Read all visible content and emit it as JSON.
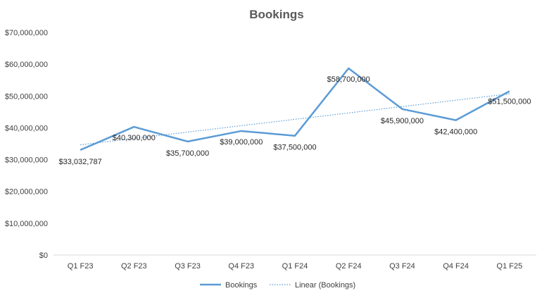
{
  "chart_data": {
    "type": "line",
    "title": "Bookings",
    "xlabel": "",
    "ylabel": "",
    "categories": [
      "Q1 F23",
      "Q2 F23",
      "Q3 F23",
      "Q4 F23",
      "Q1 F24",
      "Q2 F24",
      "Q3 F24",
      "Q4 F24",
      "Q1 F25"
    ],
    "series": [
      {
        "name": "Bookings",
        "values": [
          33032787,
          40300000,
          35700000,
          39000000,
          37500000,
          58700000,
          45900000,
          42400000,
          51500000
        ],
        "labels": [
          "$33,032,787",
          "$40,300,000",
          "$35,700,000",
          "$39,000,000",
          "$37,500,000",
          "$58,700,000",
          "$45,900,000",
          "$42,400,000",
          "$51,500,000"
        ],
        "color": "#5b9bd5"
      }
    ],
    "trendline": {
      "name": "Linear (Bookings)",
      "type": "linear",
      "color": "#5b9bd5",
      "dashed": true
    },
    "ylim": [
      0,
      70000000
    ],
    "yticks": [
      0,
      10000000,
      20000000,
      30000000,
      40000000,
      50000000,
      60000000,
      70000000
    ],
    "ytick_labels": [
      "$0",
      "$10,000,000",
      "$20,000,000",
      "$30,000,000",
      "$40,000,000",
      "$50,000,000",
      "$60,000,000",
      "$70,000,000"
    ],
    "grid": false,
    "legend_position": "bottom"
  }
}
